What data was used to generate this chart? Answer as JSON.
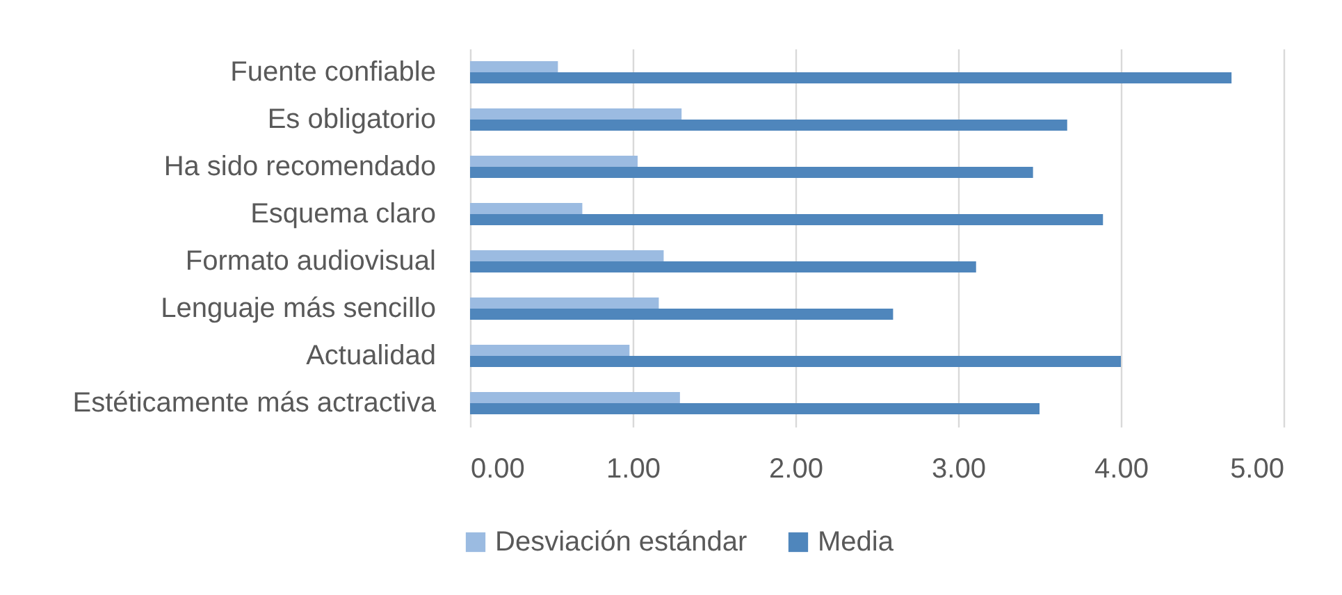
{
  "chart_data": {
    "type": "bar",
    "orientation": "horizontal",
    "categories": [
      "Fuente confiable",
      "Es obligatorio",
      "Ha sido recomendado",
      "Esquema claro",
      "Formato audiovisual",
      "Lenguaje más sencillo",
      "Actualidad",
      "Estéticamente más actractiva"
    ],
    "series": [
      {
        "name": "Desviación estándar",
        "color": "#9bbbe1",
        "values": [
          0.54,
          1.3,
          1.03,
          0.69,
          1.19,
          1.16,
          0.98,
          1.29
        ]
      },
      {
        "name": "Media",
        "color": "#4f86bc",
        "values": [
          4.68,
          3.67,
          3.46,
          3.89,
          3.11,
          2.6,
          4.0,
          3.5
        ]
      }
    ],
    "xlim": [
      0,
      5
    ],
    "xticks": [
      {
        "value": 0,
        "label": "0.00"
      },
      {
        "value": 1,
        "label": "1.00"
      },
      {
        "value": 2,
        "label": "2.00"
      },
      {
        "value": 3,
        "label": "3.00"
      },
      {
        "value": 4,
        "label": "4.00"
      },
      {
        "value": 5,
        "label": "5.00"
      }
    ],
    "grid": "x",
    "legend": "bottom"
  }
}
